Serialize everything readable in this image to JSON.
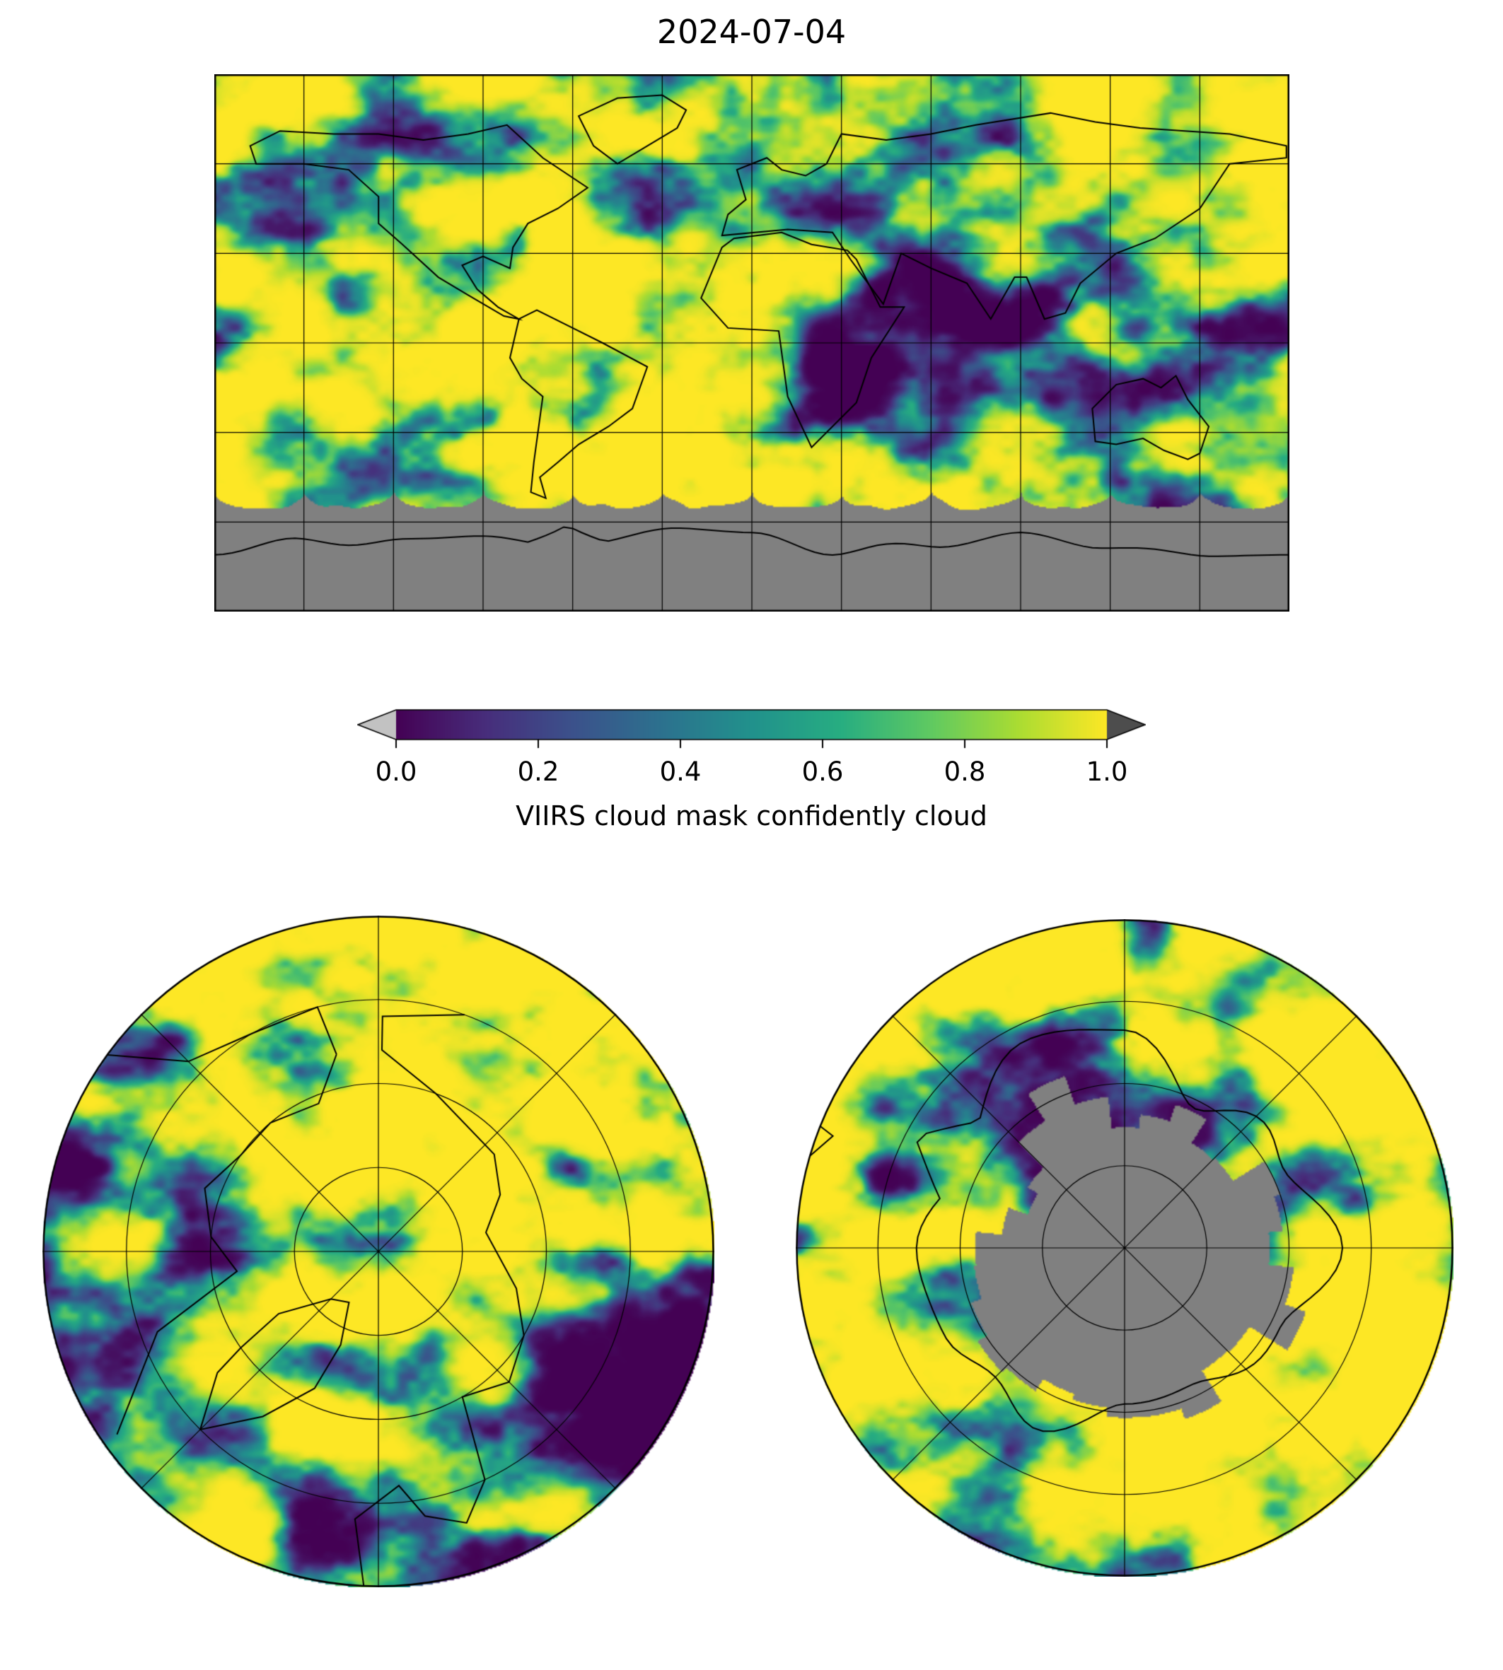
{
  "title": "2024-07-04",
  "colorbar": {
    "label": "VIIRS cloud mask confidently cloud",
    "ticks": [
      "0.0",
      "0.2",
      "0.4",
      "0.6",
      "0.8",
      "1.0"
    ],
    "under_color": "#c2c2c2",
    "over_color": "#4d4d4d"
  },
  "colors": {
    "background": "#ffffff",
    "no_data_gray": "#808080",
    "coastline": "#000000",
    "grid": "#000000"
  },
  "chart_data": {
    "type": "heatmap",
    "title": "2024-07-04",
    "variable": "VIIRS cloud mask confidently cloud",
    "value_range": [
      0.0,
      1.0
    ],
    "colorbar_ticks": [
      0.0,
      0.2,
      0.4,
      0.6,
      0.8,
      1.0
    ],
    "colormap": "viridis",
    "colormap_stops": [
      "#440154",
      "#472d7b",
      "#3b528b",
      "#2c728e",
      "#21918c",
      "#27ad81",
      "#5ec962",
      "#aadc32",
      "#fde725"
    ],
    "no_data": "gray regions (polar night south of ~50S in global map; Antarctic interior in south polar view) have no retrieval",
    "panels": [
      {
        "name": "global-map",
        "projection": "equirectangular",
        "lon_range": [
          -180,
          180
        ],
        "lat_range": [
          -90,
          90
        ],
        "gridline_interval_deg": 30,
        "features": "coastlines drawn in black; scalloped gray no-data band over Antarctica"
      },
      {
        "name": "north-polar",
        "projection": "polar stereographic (North Pole)",
        "outer_latitude": 50,
        "latitude_rings_deg": [
          80,
          70,
          60
        ],
        "meridian_interval_deg": 45
      },
      {
        "name": "south-polar",
        "projection": "polar stereographic (South Pole)",
        "outer_latitude": -50,
        "latitude_rings_deg": [
          -80,
          -70,
          -60
        ],
        "meridian_interval_deg": 45,
        "features": "gray ragged no-data area over Antarctica with coastline outline"
      }
    ],
    "legend_position": "horizontal colorbar below global map, with under/over extension arrows"
  }
}
